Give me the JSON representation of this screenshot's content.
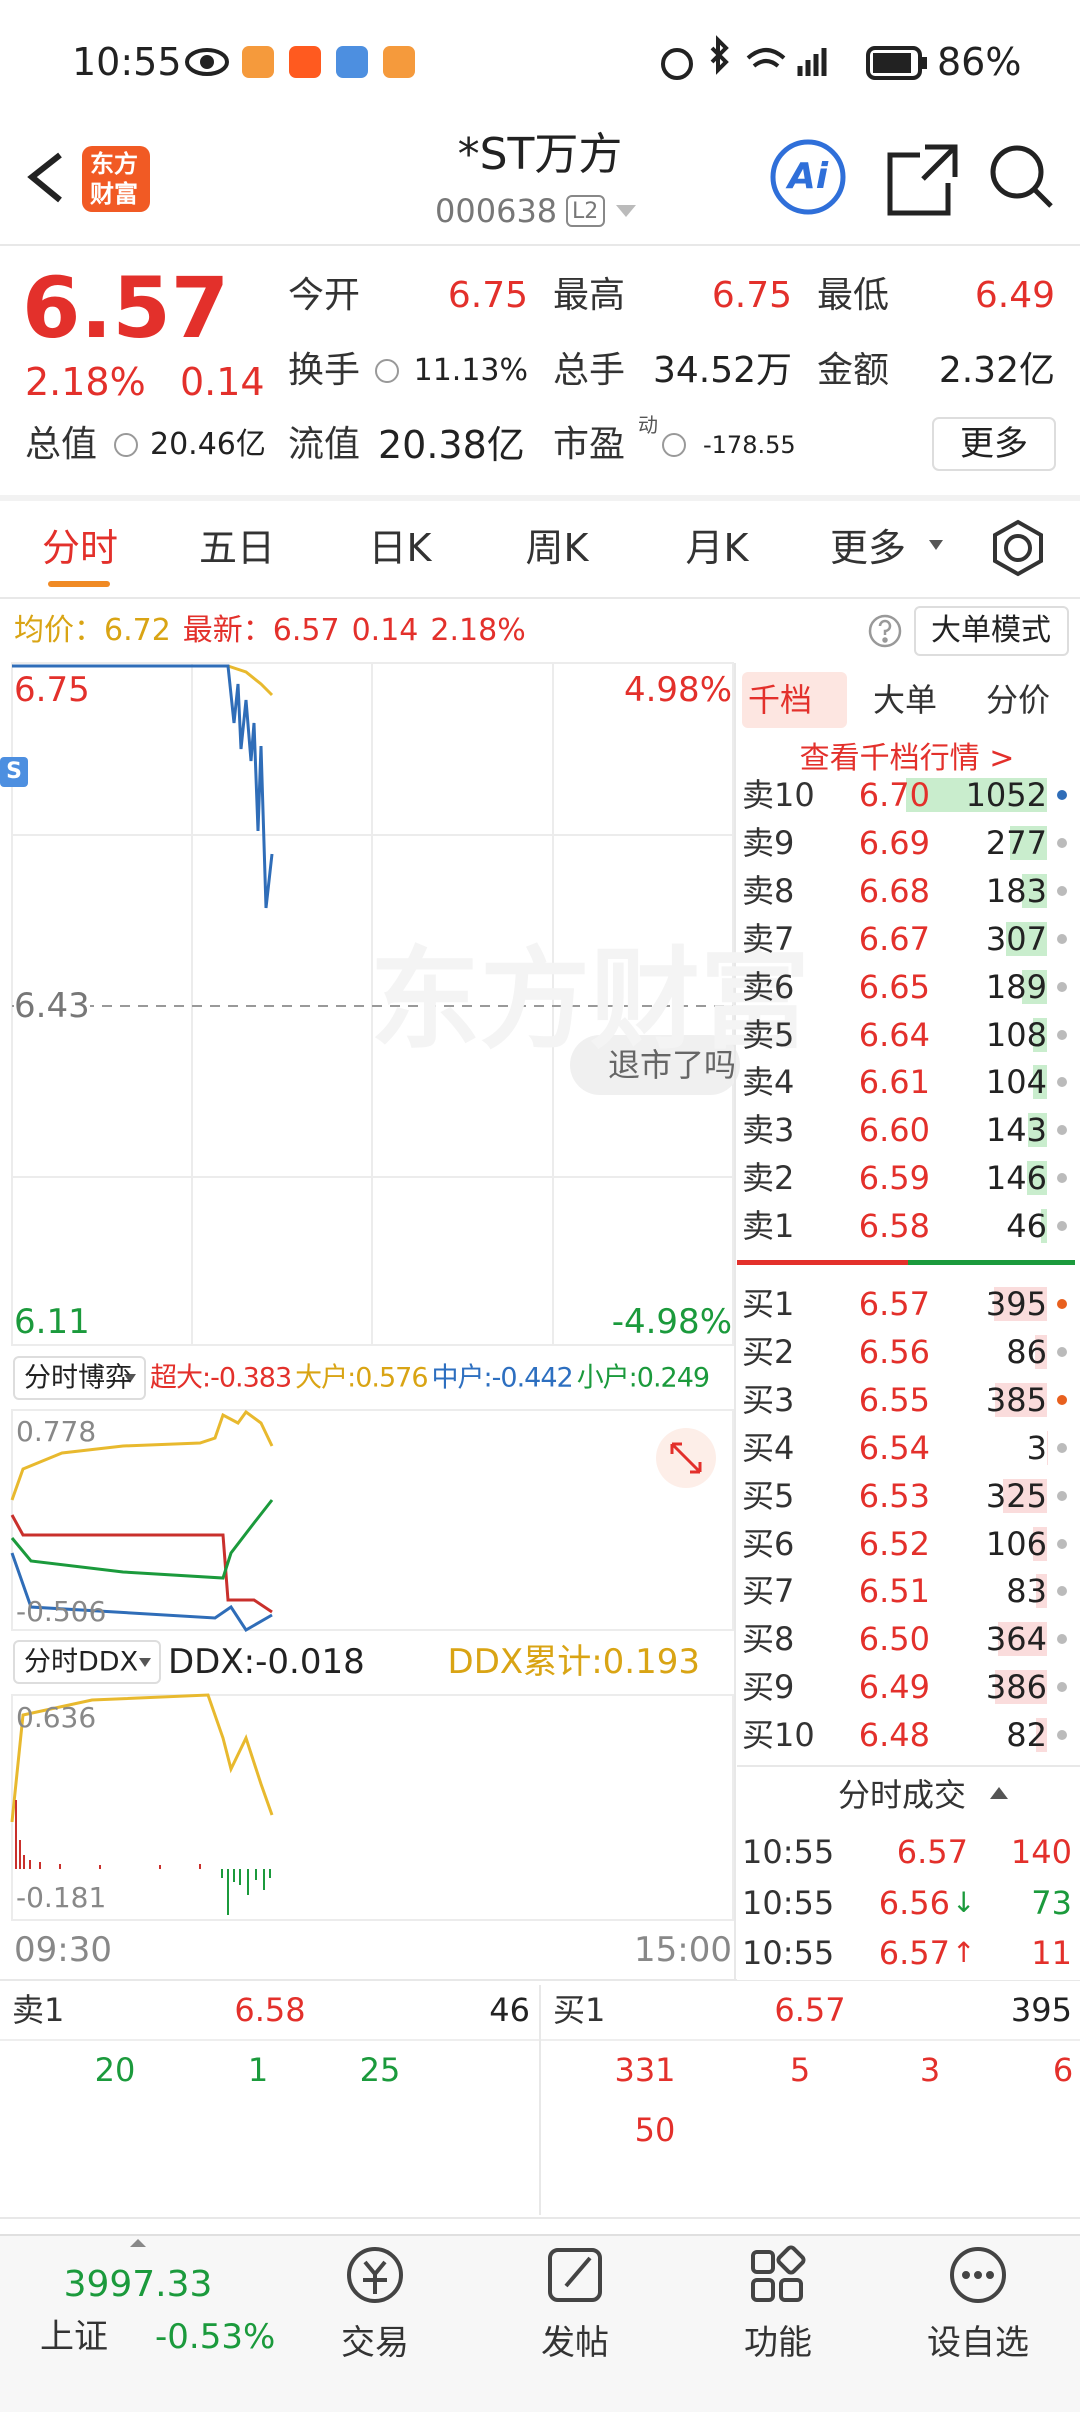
{
  "status_bar": {
    "time": "10:55",
    "battery": "86%"
  },
  "header": {
    "logo": [
      "东方",
      "财富"
    ],
    "title": "*ST万方",
    "code": "000638",
    "level": "L2",
    "ai": "Ai"
  },
  "quote": {
    "price": "6.57",
    "change_pct": "2.18%",
    "change": "0.14",
    "items": [
      {
        "label": "今开",
        "value": "6.75"
      },
      {
        "label": "最高",
        "value": "6.75"
      },
      {
        "label": "最低",
        "value": "6.49"
      },
      {
        "label": "换手",
        "value": "11.13%"
      },
      {
        "label": "总手",
        "value": "34.52万"
      },
      {
        "label": "金额",
        "value": "2.32亿"
      },
      {
        "label": "总值",
        "value": "20.46亿"
      },
      {
        "label": "流值",
        "value": "20.38亿"
      },
      {
        "label": "市盈",
        "value": "-178.55"
      }
    ],
    "pe_sup": "动",
    "more": "更多"
  },
  "tabs": [
    "分时",
    "五日",
    "日K",
    "周K",
    "月K",
    "更多"
  ],
  "info": {
    "avg_label": "均价：",
    "avg": "6.72",
    "latest_label": "最新：",
    "latest": "6.57",
    "change": "0.14",
    "change_pct": "2.18%",
    "mode": "大单模式"
  },
  "chart": {
    "high": "6.75",
    "high_pct": "4.98%",
    "prev_close": "6.43",
    "low": "6.11",
    "low_pct": "-4.98%",
    "watermark": "东方财富",
    "bubble": "退市了吗",
    "marker": "S"
  },
  "game": {
    "selector": "分时博弈",
    "items": [
      "超大:-0.383",
      "大户:0.576",
      "中户:-0.442",
      "小户:0.249"
    ],
    "max": "0.778",
    "min": "-0.506"
  },
  "ddx": {
    "selector": "分时DDX",
    "value": "DDX:-0.018",
    "cumulative": "DDX累计:0.193",
    "max": "0.636",
    "min": "-0.181",
    "start": "09:30",
    "end": "15:00"
  },
  "order_book": {
    "tabs": [
      "千档",
      "大单",
      "分价"
    ],
    "link": "查看千档行情 >",
    "asks": [
      {
        "label": "卖10",
        "price": "6.70",
        "volume": "1052"
      },
      {
        "label": "卖9",
        "price": "6.69",
        "volume": "277"
      },
      {
        "label": "卖8",
        "price": "6.68",
        "volume": "183"
      },
      {
        "label": "卖7",
        "price": "6.67",
        "volume": "307"
      },
      {
        "label": "卖6",
        "price": "6.65",
        "volume": "189"
      },
      {
        "label": "卖5",
        "price": "6.64",
        "volume": "108"
      },
      {
        "label": "卖4",
        "price": "6.61",
        "volume": "104"
      },
      {
        "label": "卖3",
        "price": "6.60",
        "volume": "143"
      },
      {
        "label": "卖2",
        "price": "6.59",
        "volume": "146"
      },
      {
        "label": "卖1",
        "price": "6.58",
        "volume": "46"
      }
    ],
    "bids": [
      {
        "label": "买1",
        "price": "6.57",
        "volume": "395"
      },
      {
        "label": "买2",
        "price": "6.56",
        "volume": "86"
      },
      {
        "label": "买3",
        "price": "6.55",
        "volume": "385"
      },
      {
        "label": "买4",
        "price": "6.54",
        "volume": "3"
      },
      {
        "label": "买5",
        "price": "6.53",
        "volume": "325"
      },
      {
        "label": "买6",
        "price": "6.52",
        "volume": "106"
      },
      {
        "label": "买7",
        "price": "6.51",
        "volume": "83"
      },
      {
        "label": "买8",
        "price": "6.50",
        "volume": "364"
      },
      {
        "label": "买9",
        "price": "6.49",
        "volume": "386"
      },
      {
        "label": "买10",
        "price": "6.48",
        "volume": "82"
      }
    ],
    "trades_title": "分时成交",
    "trades": [
      {
        "time": "10:55",
        "price": "6.57",
        "volume": "140"
      },
      {
        "time": "10:55",
        "price": "6.56",
        "arrow": "↓",
        "volume": "73"
      },
      {
        "time": "10:55",
        "price": "6.57",
        "arrow": "↑",
        "volume": "11"
      }
    ]
  },
  "depth": {
    "ask": {
      "label": "卖1",
      "price": "6.58",
      "volume": "46",
      "orders": [
        "20",
        "1",
        "25"
      ]
    },
    "bid": {
      "label": "买1",
      "price": "6.57",
      "volume": "395",
      "orders": [
        "331",
        "5",
        "3",
        "6",
        "50"
      ]
    }
  },
  "nav": {
    "index": {
      "value": "3997.33",
      "name": "上证",
      "change": "-0.53%"
    },
    "items": [
      "交易",
      "发帖",
      "功能",
      "设自选"
    ]
  }
}
